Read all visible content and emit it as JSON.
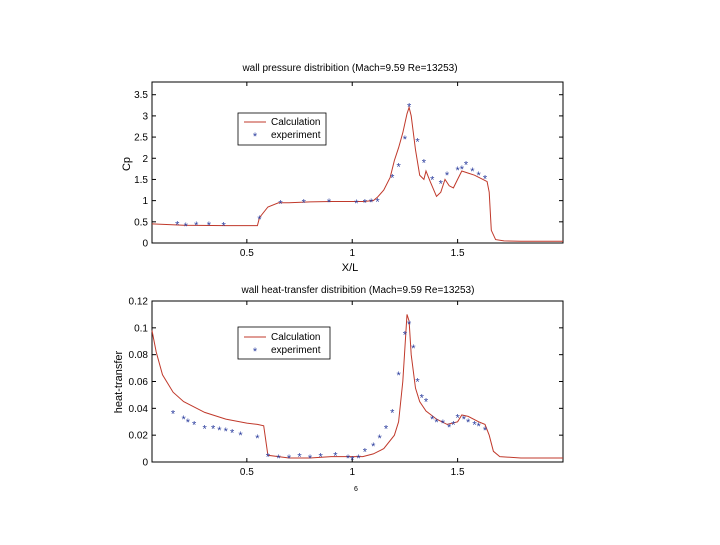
{
  "page": {
    "footnote": "6"
  },
  "chart_data": [
    {
      "type": "line",
      "title": "wall pressure distribition (Mach=9.59 Re=13253)",
      "xlabel": "X/L",
      "ylabel": "Cp",
      "xlim": [
        0.05,
        2.0
      ],
      "ylim": [
        0,
        3.8
      ],
      "xticks": [
        0.5,
        1,
        1.5
      ],
      "xtick_labels": [
        "0.5",
        "1",
        "1.5"
      ],
      "yticks": [
        0,
        0.5,
        1,
        1.5,
        2,
        2.5,
        3,
        3.5
      ],
      "ytick_labels": [
        "0",
        "0.5",
        "1",
        "1.5",
        "2",
        "2.5",
        "3",
        "3.5"
      ],
      "grid": false,
      "legend": "upper-center",
      "series": [
        {
          "name": "Calculation",
          "style": "line",
          "color": "#c0392b",
          "x": [
            0.05,
            0.2,
            0.4,
            0.55,
            0.56,
            0.6,
            0.65,
            0.7,
            0.8,
            0.9,
            1.0,
            1.05,
            1.1,
            1.12,
            1.15,
            1.18,
            1.2,
            1.22,
            1.24,
            1.26,
            1.27,
            1.28,
            1.3,
            1.32,
            1.34,
            1.35,
            1.37,
            1.4,
            1.42,
            1.44,
            1.46,
            1.48,
            1.5,
            1.52,
            1.55,
            1.58,
            1.6,
            1.62,
            1.64,
            1.65,
            1.66,
            1.68,
            1.72,
            1.8,
            2.0
          ],
          "y": [
            0.45,
            0.42,
            0.41,
            0.41,
            0.6,
            0.85,
            0.95,
            0.95,
            0.97,
            0.98,
            0.98,
            0.98,
            1.0,
            1.08,
            1.25,
            1.55,
            1.95,
            2.25,
            2.6,
            3.05,
            3.2,
            3.0,
            2.2,
            1.6,
            1.5,
            1.7,
            1.45,
            1.1,
            1.2,
            1.5,
            1.35,
            1.3,
            1.5,
            1.7,
            1.65,
            1.6,
            1.55,
            1.5,
            1.45,
            1.2,
            0.3,
            0.08,
            0.05,
            0.04,
            0.04
          ]
        },
        {
          "name": "experiment",
          "style": "marker",
          "color": "#2c3e9e",
          "x": [
            0.17,
            0.21,
            0.26,
            0.32,
            0.39,
            0.56,
            0.66,
            0.77,
            0.89,
            1.02,
            1.06,
            1.09,
            1.12,
            1.19,
            1.22,
            1.25,
            1.27,
            1.31,
            1.34,
            1.38,
            1.42,
            1.45,
            1.5,
            1.52,
            1.54,
            1.57,
            1.6,
            1.63
          ],
          "y": [
            0.44,
            0.4,
            0.42,
            0.43,
            0.41,
            0.57,
            0.93,
            0.96,
            0.97,
            0.95,
            0.96,
            0.97,
            0.98,
            1.55,
            1.8,
            2.45,
            3.22,
            2.4,
            1.9,
            1.5,
            1.4,
            1.6,
            1.72,
            1.75,
            1.85,
            1.7,
            1.6,
            1.52
          ]
        }
      ]
    },
    {
      "type": "line",
      "title": "wall heat-transfer distribition (Mach=9.59 Re=13253)",
      "xlabel": "",
      "ylabel": "heat-transfer",
      "xlim": [
        0.05,
        2.0
      ],
      "ylim": [
        0,
        0.12
      ],
      "xticks": [
        0.5,
        1,
        1.5
      ],
      "xtick_labels": [
        "0.5",
        "1",
        "1.5"
      ],
      "yticks": [
        0,
        0.02,
        0.04,
        0.06,
        0.08,
        0.1,
        0.12
      ],
      "ytick_labels": [
        "0",
        "0.02",
        "0.04",
        "0.06",
        "0.08",
        "0.1",
        "0.12"
      ],
      "grid": false,
      "legend": "upper-center",
      "series": [
        {
          "name": "Calculation",
          "style": "line",
          "color": "#c0392b",
          "x": [
            0.05,
            0.07,
            0.1,
            0.15,
            0.2,
            0.3,
            0.4,
            0.5,
            0.55,
            0.58,
            0.6,
            0.7,
            0.8,
            0.9,
            1.0,
            1.05,
            1.1,
            1.15,
            1.2,
            1.22,
            1.24,
            1.25,
            1.26,
            1.27,
            1.28,
            1.3,
            1.32,
            1.35,
            1.4,
            1.45,
            1.5,
            1.52,
            1.55,
            1.6,
            1.63,
            1.65,
            1.67,
            1.7,
            1.8,
            2.0
          ],
          "y": [
            0.098,
            0.082,
            0.065,
            0.052,
            0.045,
            0.037,
            0.032,
            0.029,
            0.028,
            0.027,
            0.005,
            0.003,
            0.003,
            0.004,
            0.004,
            0.004,
            0.006,
            0.01,
            0.02,
            0.03,
            0.06,
            0.085,
            0.11,
            0.105,
            0.08,
            0.055,
            0.045,
            0.038,
            0.032,
            0.028,
            0.03,
            0.035,
            0.034,
            0.03,
            0.028,
            0.02,
            0.008,
            0.004,
            0.003,
            0.003
          ]
        },
        {
          "name": "experiment",
          "style": "marker",
          "color": "#2c3e9e",
          "x": [
            0.15,
            0.2,
            0.22,
            0.25,
            0.3,
            0.34,
            0.37,
            0.4,
            0.43,
            0.47,
            0.55,
            0.6,
            0.65,
            0.7,
            0.75,
            0.8,
            0.85,
            0.92,
            0.98,
            1.0,
            1.03,
            1.06,
            1.1,
            1.13,
            1.16,
            1.19,
            1.22,
            1.25,
            1.27,
            1.29,
            1.31,
            1.33,
            1.35,
            1.38,
            1.4,
            1.43,
            1.46,
            1.48,
            1.5,
            1.53,
            1.55,
            1.58,
            1.6,
            1.63
          ],
          "y": [
            0.036,
            0.032,
            0.03,
            0.028,
            0.025,
            0.025,
            0.024,
            0.023,
            0.022,
            0.02,
            0.018,
            0.004,
            0.003,
            0.003,
            0.004,
            0.003,
            0.004,
            0.005,
            0.003,
            0.002,
            0.003,
            0.008,
            0.012,
            0.018,
            0.025,
            0.037,
            0.065,
            0.095,
            0.103,
            0.085,
            0.06,
            0.048,
            0.045,
            0.032,
            0.03,
            0.029,
            0.026,
            0.028,
            0.033,
            0.032,
            0.03,
            0.028,
            0.027,
            0.024
          ]
        }
      ]
    }
  ]
}
